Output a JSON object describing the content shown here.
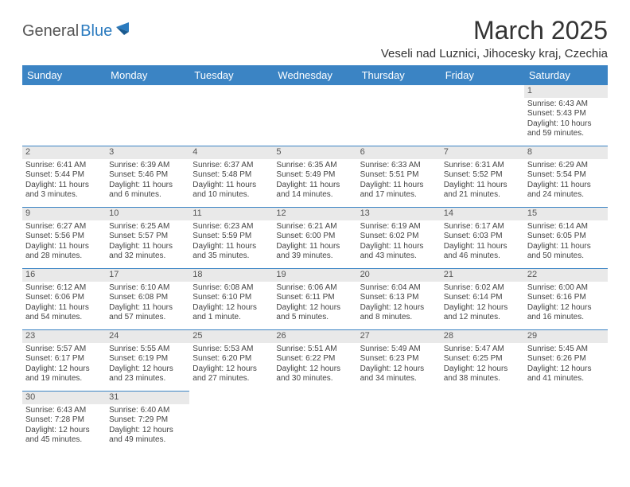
{
  "brand": {
    "general": "General",
    "blue": "Blue"
  },
  "title": "March 2025",
  "location": "Veseli nad Luznici, Jihocesky kraj, Czechia",
  "colors": {
    "header_bg": "#3b84c4",
    "header_fg": "#ffffff",
    "daynum_bg": "#e9e9e9",
    "border": "#3b84c4",
    "text": "#444444",
    "brand_blue": "#2b7bbf"
  },
  "day_headers": [
    "Sunday",
    "Monday",
    "Tuesday",
    "Wednesday",
    "Thursday",
    "Friday",
    "Saturday"
  ],
  "weeks": [
    [
      null,
      null,
      null,
      null,
      null,
      null,
      {
        "n": "1",
        "sr": "Sunrise: 6:43 AM",
        "ss": "Sunset: 5:43 PM",
        "dl": "Daylight: 10 hours and 59 minutes."
      }
    ],
    [
      {
        "n": "2",
        "sr": "Sunrise: 6:41 AM",
        "ss": "Sunset: 5:44 PM",
        "dl": "Daylight: 11 hours and 3 minutes."
      },
      {
        "n": "3",
        "sr": "Sunrise: 6:39 AM",
        "ss": "Sunset: 5:46 PM",
        "dl": "Daylight: 11 hours and 6 minutes."
      },
      {
        "n": "4",
        "sr": "Sunrise: 6:37 AM",
        "ss": "Sunset: 5:48 PM",
        "dl": "Daylight: 11 hours and 10 minutes."
      },
      {
        "n": "5",
        "sr": "Sunrise: 6:35 AM",
        "ss": "Sunset: 5:49 PM",
        "dl": "Daylight: 11 hours and 14 minutes."
      },
      {
        "n": "6",
        "sr": "Sunrise: 6:33 AM",
        "ss": "Sunset: 5:51 PM",
        "dl": "Daylight: 11 hours and 17 minutes."
      },
      {
        "n": "7",
        "sr": "Sunrise: 6:31 AM",
        "ss": "Sunset: 5:52 PM",
        "dl": "Daylight: 11 hours and 21 minutes."
      },
      {
        "n": "8",
        "sr": "Sunrise: 6:29 AM",
        "ss": "Sunset: 5:54 PM",
        "dl": "Daylight: 11 hours and 24 minutes."
      }
    ],
    [
      {
        "n": "9",
        "sr": "Sunrise: 6:27 AM",
        "ss": "Sunset: 5:56 PM",
        "dl": "Daylight: 11 hours and 28 minutes."
      },
      {
        "n": "10",
        "sr": "Sunrise: 6:25 AM",
        "ss": "Sunset: 5:57 PM",
        "dl": "Daylight: 11 hours and 32 minutes."
      },
      {
        "n": "11",
        "sr": "Sunrise: 6:23 AM",
        "ss": "Sunset: 5:59 PM",
        "dl": "Daylight: 11 hours and 35 minutes."
      },
      {
        "n": "12",
        "sr": "Sunrise: 6:21 AM",
        "ss": "Sunset: 6:00 PM",
        "dl": "Daylight: 11 hours and 39 minutes."
      },
      {
        "n": "13",
        "sr": "Sunrise: 6:19 AM",
        "ss": "Sunset: 6:02 PM",
        "dl": "Daylight: 11 hours and 43 minutes."
      },
      {
        "n": "14",
        "sr": "Sunrise: 6:17 AM",
        "ss": "Sunset: 6:03 PM",
        "dl": "Daylight: 11 hours and 46 minutes."
      },
      {
        "n": "15",
        "sr": "Sunrise: 6:14 AM",
        "ss": "Sunset: 6:05 PM",
        "dl": "Daylight: 11 hours and 50 minutes."
      }
    ],
    [
      {
        "n": "16",
        "sr": "Sunrise: 6:12 AM",
        "ss": "Sunset: 6:06 PM",
        "dl": "Daylight: 11 hours and 54 minutes."
      },
      {
        "n": "17",
        "sr": "Sunrise: 6:10 AM",
        "ss": "Sunset: 6:08 PM",
        "dl": "Daylight: 11 hours and 57 minutes."
      },
      {
        "n": "18",
        "sr": "Sunrise: 6:08 AM",
        "ss": "Sunset: 6:10 PM",
        "dl": "Daylight: 12 hours and 1 minute."
      },
      {
        "n": "19",
        "sr": "Sunrise: 6:06 AM",
        "ss": "Sunset: 6:11 PM",
        "dl": "Daylight: 12 hours and 5 minutes."
      },
      {
        "n": "20",
        "sr": "Sunrise: 6:04 AM",
        "ss": "Sunset: 6:13 PM",
        "dl": "Daylight: 12 hours and 8 minutes."
      },
      {
        "n": "21",
        "sr": "Sunrise: 6:02 AM",
        "ss": "Sunset: 6:14 PM",
        "dl": "Daylight: 12 hours and 12 minutes."
      },
      {
        "n": "22",
        "sr": "Sunrise: 6:00 AM",
        "ss": "Sunset: 6:16 PM",
        "dl": "Daylight: 12 hours and 16 minutes."
      }
    ],
    [
      {
        "n": "23",
        "sr": "Sunrise: 5:57 AM",
        "ss": "Sunset: 6:17 PM",
        "dl": "Daylight: 12 hours and 19 minutes."
      },
      {
        "n": "24",
        "sr": "Sunrise: 5:55 AM",
        "ss": "Sunset: 6:19 PM",
        "dl": "Daylight: 12 hours and 23 minutes."
      },
      {
        "n": "25",
        "sr": "Sunrise: 5:53 AM",
        "ss": "Sunset: 6:20 PM",
        "dl": "Daylight: 12 hours and 27 minutes."
      },
      {
        "n": "26",
        "sr": "Sunrise: 5:51 AM",
        "ss": "Sunset: 6:22 PM",
        "dl": "Daylight: 12 hours and 30 minutes."
      },
      {
        "n": "27",
        "sr": "Sunrise: 5:49 AM",
        "ss": "Sunset: 6:23 PM",
        "dl": "Daylight: 12 hours and 34 minutes."
      },
      {
        "n": "28",
        "sr": "Sunrise: 5:47 AM",
        "ss": "Sunset: 6:25 PM",
        "dl": "Daylight: 12 hours and 38 minutes."
      },
      {
        "n": "29",
        "sr": "Sunrise: 5:45 AM",
        "ss": "Sunset: 6:26 PM",
        "dl": "Daylight: 12 hours and 41 minutes."
      }
    ],
    [
      {
        "n": "30",
        "sr": "Sunrise: 6:43 AM",
        "ss": "Sunset: 7:28 PM",
        "dl": "Daylight: 12 hours and 45 minutes."
      },
      {
        "n": "31",
        "sr": "Sunrise: 6:40 AM",
        "ss": "Sunset: 7:29 PM",
        "dl": "Daylight: 12 hours and 49 minutes."
      },
      null,
      null,
      null,
      null,
      null
    ]
  ]
}
